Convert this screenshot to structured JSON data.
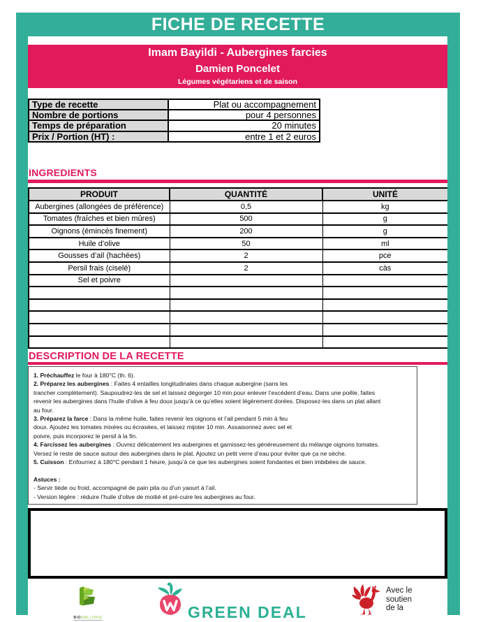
{
  "page": {
    "title": "FICHE DE RECETTE"
  },
  "banner": {
    "recipe_title": "Imam Bayildi - Aubergines farcies",
    "author": "Damien Poncelet",
    "category": "Légumes végétariens et de saison"
  },
  "info_table": {
    "rows": [
      {
        "label": "Type de recette",
        "value": "Plat ou accompagnement"
      },
      {
        "label": "Nombre de portions",
        "value": "pour 4 personnes"
      },
      {
        "label": "Temps de préparation",
        "value": "20 minutes"
      },
      {
        "label": "Prix  / Portion (HT) :",
        "value": "entre 1 et 2 euros"
      }
    ]
  },
  "ingredients": {
    "heading": "INGREDIENTS",
    "columns": [
      "PRODUIT",
      "QUANTITÉ",
      "UNITÉ"
    ],
    "rows": [
      [
        "Aubergines (allongées de préférence)",
        "0,5",
        "kg"
      ],
      [
        "Tomates (fraîches et bien mûres)",
        "500",
        "g"
      ],
      [
        "Oignons (émincés finement)",
        "200",
        "g"
      ],
      [
        "Huile d’olive",
        "50",
        "ml"
      ],
      [
        "Gousses d’ail (hachées)",
        "2",
        "pce"
      ],
      [
        "Persil frais (ciselé)",
        "2",
        "càs"
      ],
      [
        "Sel et poivre",
        "",
        ""
      ],
      [
        "",
        "",
        ""
      ],
      [
        "",
        "",
        ""
      ],
      [
        "",
        "",
        ""
      ],
      [
        "",
        "",
        ""
      ],
      [
        "",
        "",
        ""
      ]
    ]
  },
  "description": {
    "heading": "DESCRIPTION DE LA RECETTE",
    "lines": [
      {
        "bold": "1. Préchauffez",
        "text": " le four à 180°C (th. 6)."
      },
      {
        "bold": "2. Préparez les aubergines",
        "text": " : Faites 4 entailles longitudinales dans chaque aubergine (sans les"
      },
      {
        "bold": "",
        "text": "trancher complètement). Saupoudrez-les de sel et laissez dégorger 10 min pour enlever l’excédent d’eau. Dans une poêle, faites"
      },
      {
        "bold": "",
        "text": "revenir les aubergines dans l’huile d’olive à feu doux jusqu’à ce qu’elles soient légèrement dorées. Disposez-les dans un plat allant"
      },
      {
        "bold": "",
        "text": "au four."
      },
      {
        "bold": "3. Préparez la farce",
        "text": " : Dans la même huile, faites revenir les oignons et l’ail pendant 5 min à feu"
      },
      {
        "bold": "",
        "text": "doux. Ajoutez les tomates mixées ou écrasées, et laissez mijoter 10 min. Assaisonnez avec sel et"
      },
      {
        "bold": "",
        "text": "poivre, puis incorporez le persil à la fin."
      },
      {
        "bold": "4. Farcissez les aubergines",
        "text": " : Ouvrez délicatement les aubergines et garnissez-les généreusement du mélange oignons tomates."
      },
      {
        "bold": "",
        "text": "Versez le reste de sauce autour des aubergines dans le plat. Ajoutez un petit verre d’eau pour éviter que ça ne sèche."
      },
      {
        "bold": "5. Cuisson",
        "text": " : Enfournez à 180°C pendant 1 heure, jusqu’à ce que les aubergines soient fondantes et bien imbibées de sauce."
      },
      {
        "bold": "",
        "text": ""
      },
      {
        "bold": "Astuces :",
        "text": ""
      },
      {
        "bold": "",
        "text": "- Servir tiède ou froid, accompagné de pain pita ou d’un yaourt à l’ail."
      },
      {
        "bold": "",
        "text": "- Version légère : réduire l’huile d’olive de moitié et pré-cuire les aubergines au four."
      }
    ]
  },
  "footer": {
    "biowallonie_caption_bold": "BIO",
    "biowallonie_caption_light": "WALLONIE",
    "greendeal_text": "GREEN DEAL",
    "wallonie_support_lines": [
      "Avec le",
      "soutien",
      "de la"
    ]
  },
  "colors": {
    "teal": "#33ae98",
    "pink": "#e21a5b",
    "header_cell_gray": "#d9d9d9",
    "greendeal_teal": "#2bb093",
    "radish_pink": "#e8456b",
    "rooster_red": "#cc2129",
    "bio_green": "#8dc63f"
  }
}
